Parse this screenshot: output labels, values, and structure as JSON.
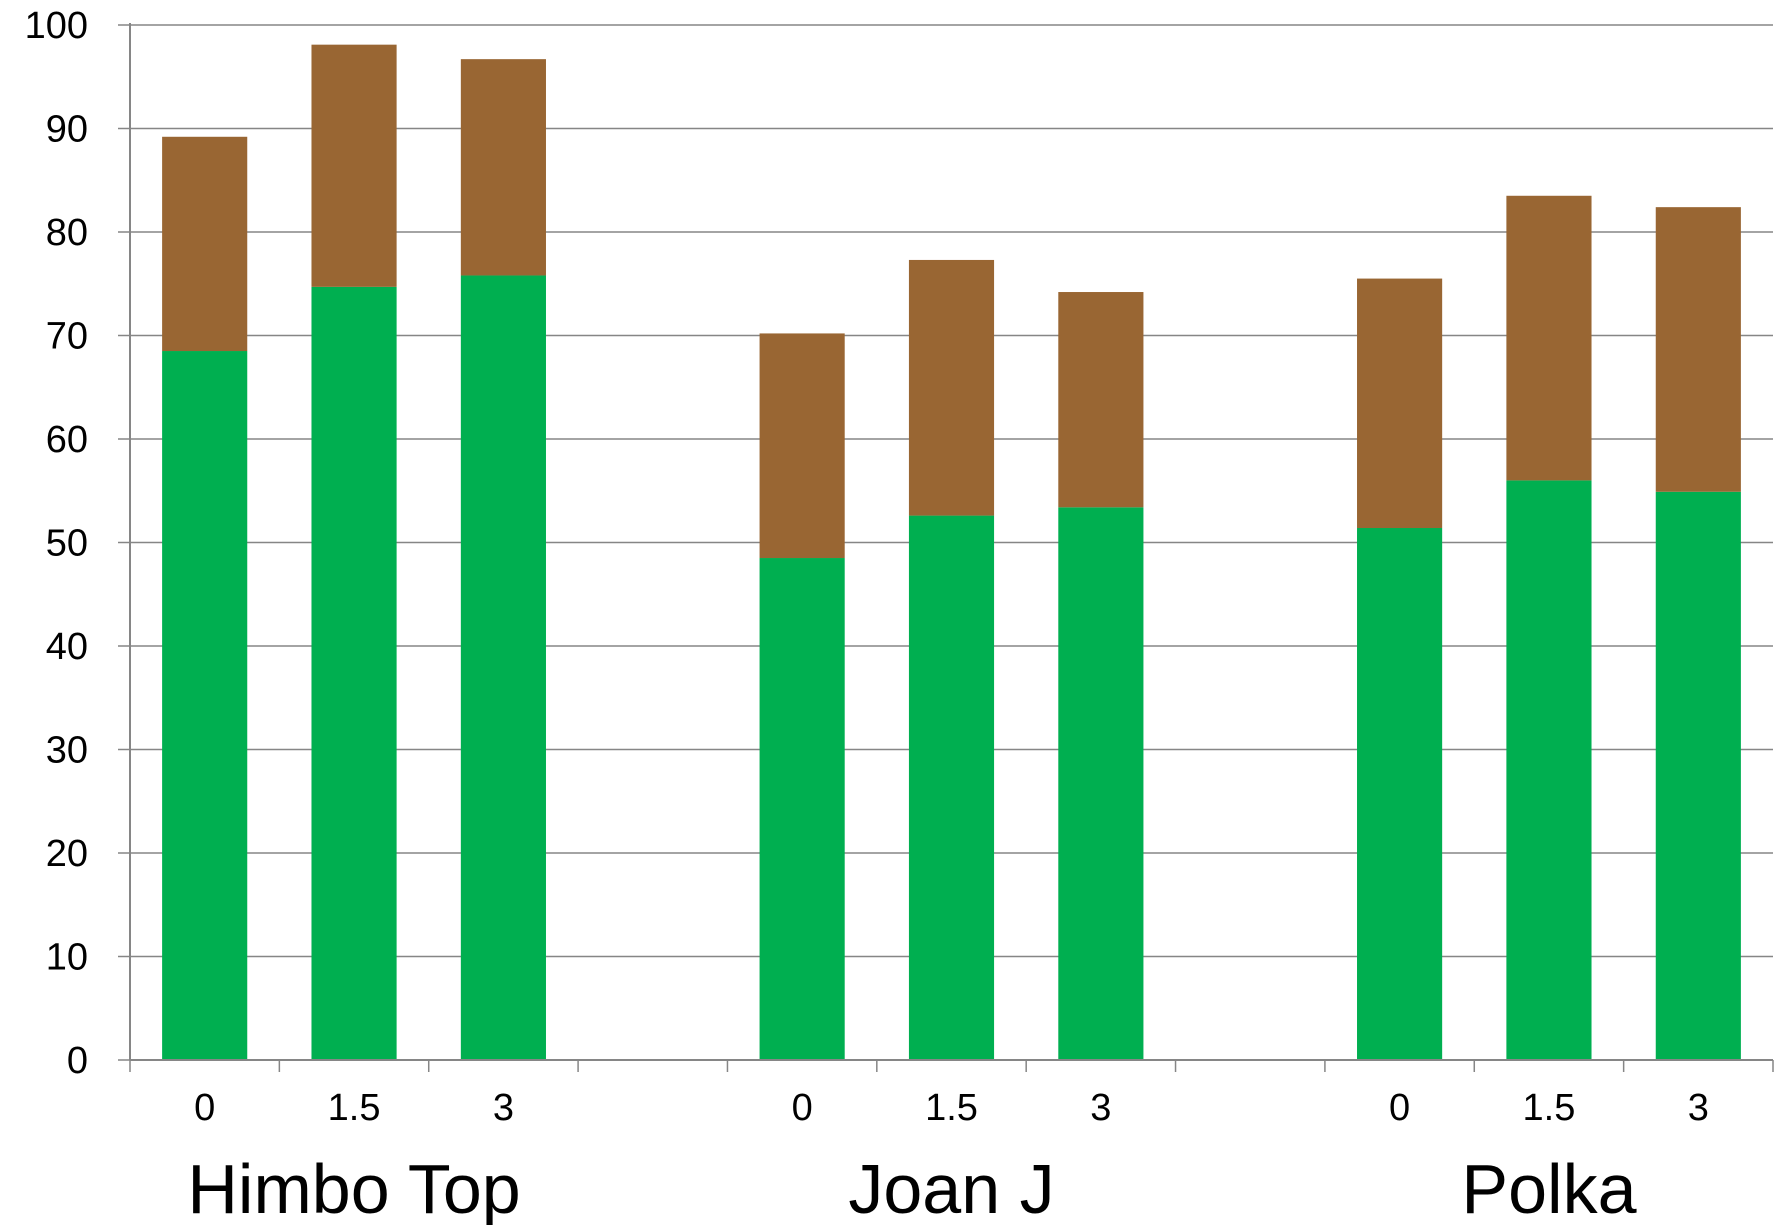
{
  "chart_data": {
    "type": "bar",
    "stacked": true,
    "title": "",
    "xlabel": "",
    "ylabel": "",
    "ylim": [
      0,
      100
    ],
    "yticks": [
      0,
      10,
      20,
      30,
      40,
      50,
      60,
      70,
      80,
      90,
      100
    ],
    "grid": true,
    "groups": [
      "Himbo Top",
      "Joan J",
      "Polka"
    ],
    "categories": [
      "0",
      "1.5",
      "3"
    ],
    "colors": {
      "bottom": "#00AF50",
      "top": "#996633",
      "grid": "#868686"
    },
    "series": [
      {
        "values": [
          [
            68.5,
            74.7,
            75.8
          ],
          [
            48.5,
            52.6,
            53.4
          ],
          [
            51.4,
            56.0,
            54.9
          ]
        ]
      },
      {
        "values": [
          [
            20.7,
            23.4,
            20.9
          ],
          [
            21.7,
            24.7,
            20.8
          ],
          [
            24.1,
            27.5,
            27.5
          ]
        ]
      }
    ]
  }
}
